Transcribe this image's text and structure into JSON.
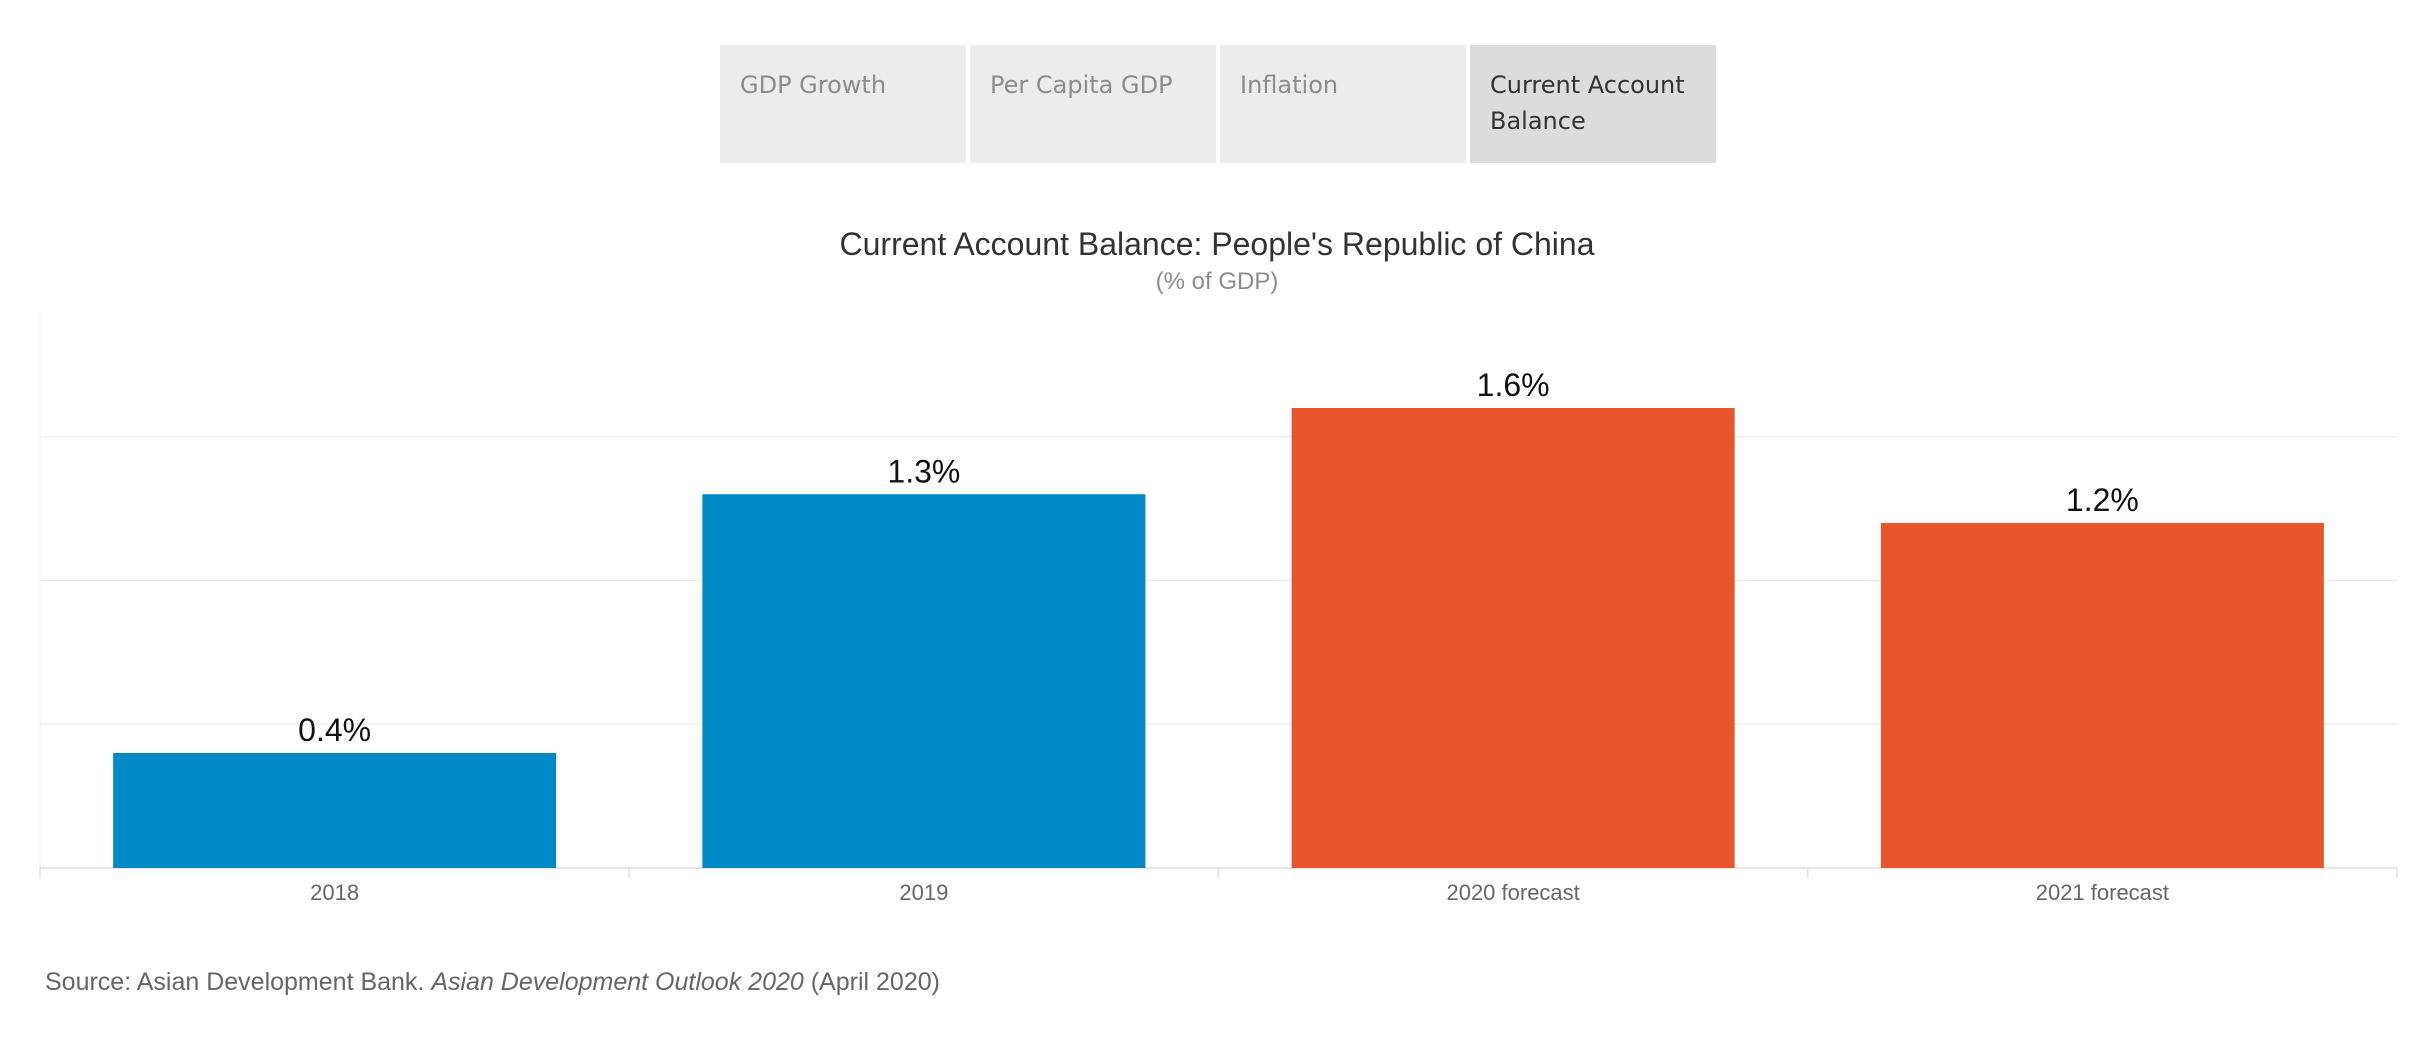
{
  "tabs": [
    {
      "label": "GDP Growth",
      "selected": false
    },
    {
      "label": "Per Capita GDP",
      "selected": false
    },
    {
      "label": "Inflation",
      "selected": false
    },
    {
      "label": "Current Account Balance",
      "selected": true
    }
  ],
  "source": {
    "prefix": "Source: Asian Development Bank. ",
    "publication": "Asian Development Outlook 2020",
    "suffix": " (April 2020)"
  },
  "colors": {
    "actual": "#0189c7",
    "forecast": "#e8552b",
    "tab_bg": "#ececec",
    "tab_selected_bg": "#dcdcdc"
  },
  "chart_data": {
    "type": "bar",
    "title": "Current Account Balance: People's Republic of China",
    "subtitle": "(% of GDP)",
    "categories": [
      "2018",
      "2019",
      "2020 forecast",
      "2021 forecast"
    ],
    "values": [
      0.4,
      1.3,
      1.6,
      1.2
    ],
    "data_labels": [
      "0.4%",
      "1.3%",
      "1.6%",
      "1.2%"
    ],
    "bar_colors": [
      "#0189c7",
      "#0189c7",
      "#e8552b",
      "#e8552b"
    ],
    "ylim": [
      0,
      1.8
    ],
    "gridlines": [
      0,
      0.5,
      1.0,
      1.5
    ],
    "grid": true,
    "xlabel": "",
    "ylabel": ""
  }
}
